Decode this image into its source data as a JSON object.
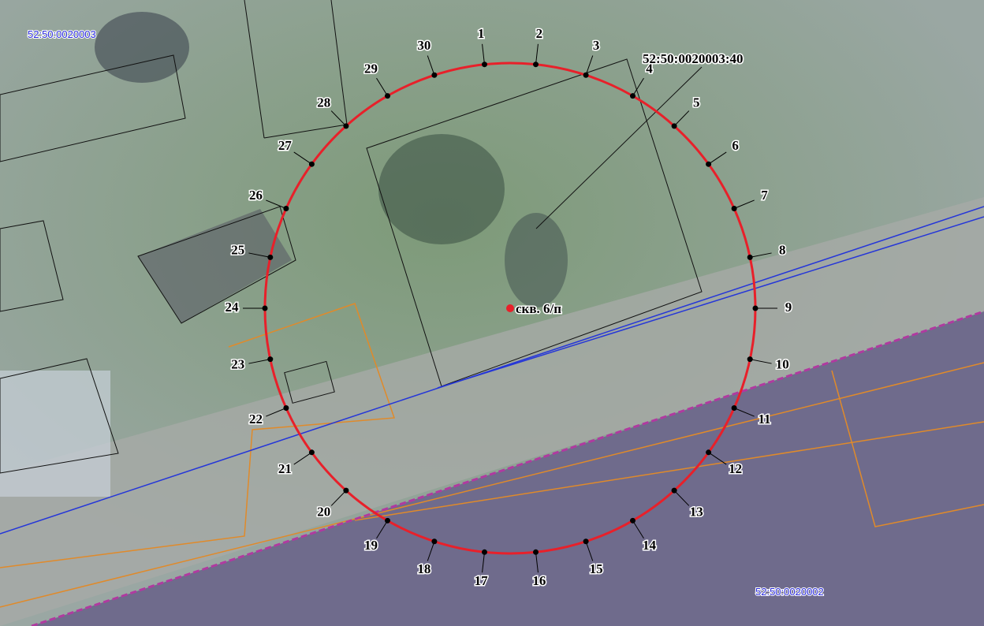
{
  "cadastral_labels": [
    "52:50:0020003",
    "52:50:0020003:40",
    "52:50:0020002"
  ],
  "well_label": "скв. 6/п",
  "points": [
    "1",
    "2",
    "3",
    "4",
    "5",
    "6",
    "7",
    "8",
    "9",
    "10",
    "11",
    "12",
    "13",
    "14",
    "15",
    "16",
    "17",
    "18",
    "19",
    "20",
    "21",
    "22",
    "23",
    "24",
    "25",
    "26",
    "27",
    "28",
    "29",
    "30"
  ]
}
